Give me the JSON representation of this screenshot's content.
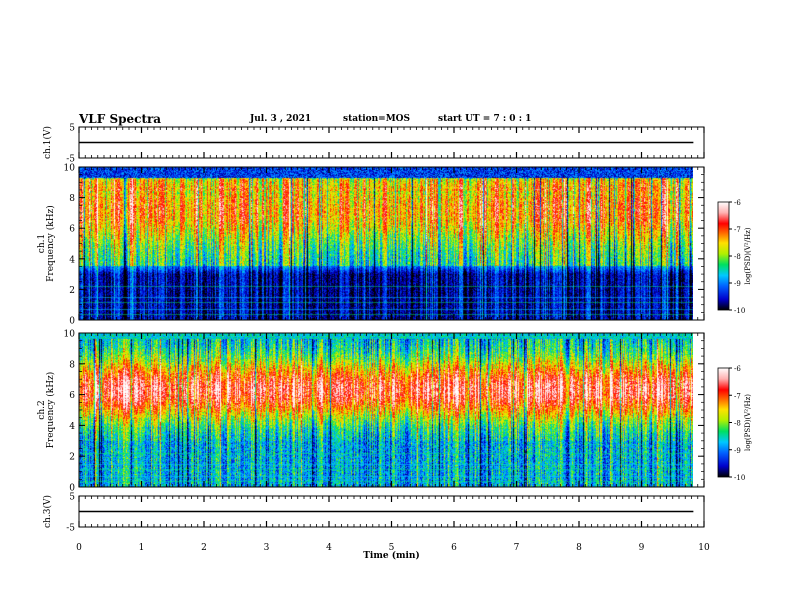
{
  "header": {
    "title": "VLF Spectra",
    "date": "Jul. 3 , 2021",
    "station": "station=MOS",
    "start": "start UT = 7 : 0 : 1"
  },
  "chart_data": [
    {
      "id": "ch1-waveform",
      "type": "line",
      "ylabel": "ch.1(V)",
      "ylim": [
        -5,
        5
      ],
      "yticks": [
        5,
        -5
      ],
      "xlim": [
        0,
        10
      ],
      "series": [
        {
          "x": [
            0,
            9.83
          ],
          "y": [
            0,
            0
          ]
        }
      ]
    },
    {
      "id": "ch1-spectrogram",
      "type": "heatmap",
      "ylabel": "ch.1\nFrequency (kHz)",
      "ylim": [
        0,
        10
      ],
      "yticks": [
        0,
        2,
        4,
        6,
        8,
        10
      ],
      "xlim": [
        0,
        10
      ],
      "data_xmax": 9.83,
      "colorbar": {
        "label": "log(PSD)(V²/Hz)",
        "range": [
          -10,
          -6
        ],
        "ticks": [
          -6,
          -7,
          -8,
          -9,
          -10
        ]
      }
    },
    {
      "id": "ch2-spectrogram",
      "type": "heatmap",
      "ylabel": "ch.2\nFrequency (kHz)",
      "ylim": [
        0,
        10
      ],
      "yticks": [
        0,
        2,
        4,
        6,
        8,
        10
      ],
      "xlim": [
        0,
        10
      ],
      "data_xmax": 9.83,
      "colorbar": {
        "label": "log(PSD)(V²/Hz)",
        "range": [
          -10,
          -6
        ],
        "ticks": [
          -6,
          -7,
          -8,
          -9,
          -10
        ]
      }
    },
    {
      "id": "ch3-waveform",
      "type": "line",
      "ylabel": "ch.3(V)",
      "ylim": [
        -5,
        5
      ],
      "yticks": [
        5,
        -5
      ],
      "xlim": [
        0,
        10
      ],
      "xlabel": "Time (min)",
      "xticks": [
        0,
        1,
        2,
        3,
        4,
        5,
        6,
        7,
        8,
        9,
        10
      ],
      "series": [
        {
          "x": [
            0,
            9.83
          ],
          "y": [
            0,
            0
          ]
        }
      ]
    }
  ],
  "colors": {
    "scale": [
      "#000000",
      "#0000cc",
      "#0060ff",
      "#00c8ff",
      "#00e060",
      "#b0f000",
      "#ffe000",
      "#ff6000",
      "#ff0000",
      "#ffb0b0",
      "#ffffff"
    ],
    "frame": "#000000"
  }
}
